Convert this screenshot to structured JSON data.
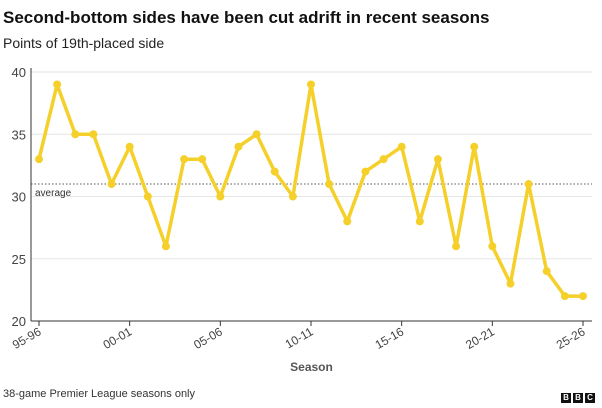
{
  "header": {
    "title": "Second-bottom sides have been cut adrift in recent seasons",
    "subtitle": "Points of 19th-placed side"
  },
  "footer": {
    "note": "38-game Premier League seasons only",
    "logo_letters": [
      "B",
      "B",
      "C"
    ]
  },
  "colors": {
    "line": "#f5d02b",
    "grid": "#e6e6e6",
    "axis": "#333333",
    "average_line": "#555555"
  },
  "chart_data": {
    "type": "line",
    "title": "Second-bottom sides have been cut adrift in recent seasons",
    "subtitle": "Points of 19th-placed side",
    "xlabel": "Season",
    "ylabel": "",
    "ylim": [
      20,
      40
    ],
    "yticks": [
      20,
      25,
      30,
      35,
      40
    ],
    "grid": true,
    "x": [
      "95-96",
      "96-97",
      "97-98",
      "98-99",
      "99-00",
      "00-01",
      "01-02",
      "02-03",
      "03-04",
      "04-05",
      "05-06",
      "06-07",
      "07-08",
      "08-09",
      "09-10",
      "10-11",
      "11-12",
      "12-13",
      "13-14",
      "14-15",
      "15-16",
      "16-17",
      "17-18",
      "18-19",
      "19-20",
      "20-21",
      "21-22",
      "22-23",
      "23-24",
      "24-25",
      "25-26"
    ],
    "xtick_labels": [
      "95-96",
      "00-01",
      "05-06",
      "10-11",
      "15-16",
      "20-21",
      "25-26"
    ],
    "series": [
      {
        "values": [
          33,
          39,
          35,
          35,
          31,
          34,
          30,
          26,
          33,
          33,
          30,
          34,
          35,
          32,
          30,
          39,
          31,
          28,
          32,
          33,
          34,
          28,
          33,
          26,
          34,
          26,
          23,
          31,
          24,
          22,
          22
        ]
      }
    ],
    "reference_lines": [
      {
        "label": "average",
        "value": 31
      }
    ]
  }
}
